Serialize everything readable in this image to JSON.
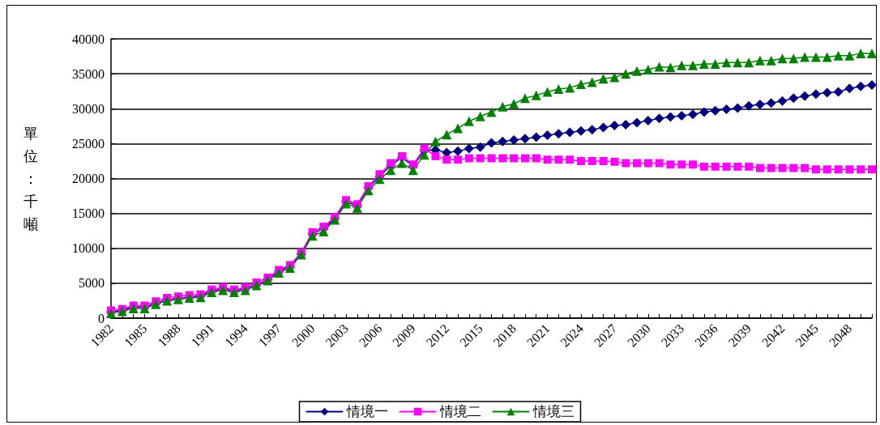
{
  "chart_data": {
    "type": "line",
    "ylabel": "單位：千噸",
    "categories": [
      "1982",
      null,
      null,
      "1985",
      null,
      null,
      "1988",
      null,
      null,
      "1991",
      null,
      null,
      "1994",
      null,
      null,
      "1997",
      null,
      null,
      "2000",
      null,
      null,
      "2003",
      null,
      null,
      "2006",
      null,
      null,
      "2009",
      null,
      null,
      "2012",
      null,
      null,
      "2015",
      null,
      null,
      "2018",
      null,
      null,
      "2021",
      null,
      null,
      "2024",
      null,
      null,
      "2027",
      null,
      null,
      "2030",
      null,
      null,
      "2033",
      null,
      null,
      "2036",
      null,
      null,
      "2039",
      null,
      null,
      "2042",
      null,
      null,
      "2045",
      null,
      null,
      "2048",
      null,
      null
    ],
    "series": [
      {
        "name": "情境一",
        "color": "#000080",
        "marker": "diamond",
        "values": [
          900,
          1100,
          1600,
          1600,
          2100,
          2600,
          2800,
          3000,
          3200,
          3900,
          4200,
          3900,
          4200,
          4800,
          5500,
          6700,
          7400,
          9200,
          12100,
          12800,
          14300,
          16700,
          16100,
          18700,
          20300,
          21900,
          23000,
          21800,
          24000,
          24100,
          23700,
          23900,
          24300,
          24500,
          25100,
          25300,
          25500,
          25700,
          25900,
          26200,
          26400,
          26600,
          26800,
          27000,
          27300,
          27600,
          27700,
          28000,
          28300,
          28600,
          28800,
          29000,
          29200,
          29500,
          29700,
          29900,
          30100,
          30400,
          30600,
          30800,
          31100,
          31500,
          31800,
          32100,
          32300,
          32400,
          32900,
          33200,
          33400
        ]
      },
      {
        "name": "情境二",
        "color": "#ff00ff",
        "marker": "square",
        "values": [
          1100,
          1300,
          1800,
          1800,
          2400,
          2900,
          3100,
          3300,
          3400,
          4100,
          4400,
          4100,
          4400,
          5100,
          5800,
          6900,
          7600,
          9400,
          12300,
          13100,
          14500,
          16900,
          16300,
          18900,
          20600,
          22200,
          23200,
          22000,
          24300,
          23200,
          22700,
          22700,
          22900,
          22900,
          22900,
          22900,
          22900,
          22900,
          22900,
          22700,
          22700,
          22700,
          22500,
          22500,
          22500,
          22400,
          22200,
          22200,
          22200,
          22200,
          22000,
          22000,
          22000,
          21700,
          21700,
          21700,
          21700,
          21700,
          21500,
          21500,
          21500,
          21500,
          21500,
          21300,
          21300,
          21300,
          21300,
          21300,
          21300
        ]
      },
      {
        "name": "情境三",
        "color": "#008000",
        "marker": "triangle",
        "values": [
          700,
          1000,
          1400,
          1400,
          2000,
          2500,
          2700,
          2900,
          3000,
          3700,
          4000,
          3700,
          4000,
          4700,
          5400,
          6500,
          7200,
          9100,
          11800,
          12400,
          14100,
          16400,
          15800,
          18300,
          19900,
          21200,
          22200,
          21200,
          23400,
          25300,
          26300,
          27200,
          28200,
          28900,
          29500,
          30300,
          30700,
          31500,
          31900,
          32400,
          32800,
          33000,
          33500,
          33800,
          34300,
          34500,
          35000,
          35400,
          35600,
          36000,
          35900,
          36200,
          36200,
          36400,
          36400,
          36600,
          36600,
          36600,
          36900,
          36900,
          37200,
          37200,
          37400,
          37400,
          37400,
          37600,
          37600,
          37900,
          37900
        ]
      }
    ],
    "ylim": [
      0,
      40000
    ],
    "yticks": [
      0,
      5000,
      10000,
      15000,
      20000,
      25000,
      30000,
      35000,
      40000
    ],
    "grid": "y",
    "legend": "bottom",
    "line_style": "solid"
  }
}
